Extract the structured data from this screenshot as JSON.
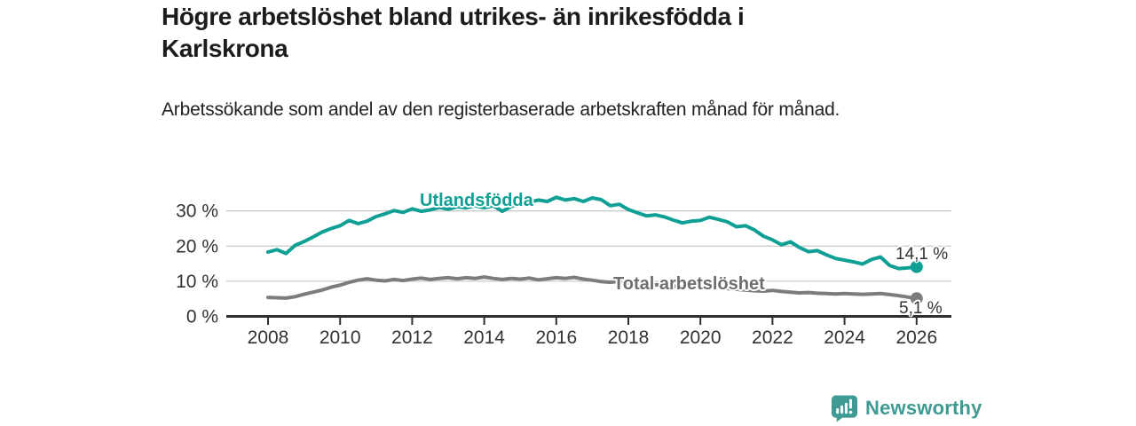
{
  "header": {
    "title": "Högre arbetslöshet bland utrikes- än inrikesfödda i Karlskrona",
    "subtitle": "Arbetssökande som andel av den registerbaserade arbetskraften månad för månad."
  },
  "chart_data": {
    "type": "line",
    "title": "Högre arbetslöshet bland utrikes- än inrikesfödda i Karlskrona",
    "subtitle": "Arbetssökande som andel av den registerbaserade arbetskraften månad för månad.",
    "x_unit": "year (monthly share of registered labour force)",
    "x_start": 2008,
    "x_step": 0.25,
    "xlim": [
      2006.7,
      2027.1
    ],
    "ylim": [
      0,
      36.5
    ],
    "x_ticks": [
      2008,
      2010,
      2012,
      2014,
      2016,
      2018,
      2020,
      2022,
      2024,
      2026
    ],
    "y_ticks": [
      0,
      10,
      20,
      30
    ],
    "y_tick_labels": [
      "0 %",
      "10 %",
      "20 %",
      "30 %"
    ],
    "grid": "horizontal",
    "legend": "inline-labels",
    "series": [
      {
        "name": "Utlandsfödda",
        "color": "#0f9f94",
        "label_color": "#0f9f94",
        "end_label": "14,1 %",
        "end_value": 14.1,
        "values": [
          18.3,
          19.0,
          17.9,
          20.2,
          21.3,
          22.6,
          24.0,
          25.0,
          25.8,
          27.3,
          26.4,
          27.1,
          28.4,
          29.2,
          30.1,
          29.6,
          30.6,
          29.9,
          30.3,
          31.0,
          30.5,
          31.2,
          30.9,
          31.5,
          30.9,
          31.5,
          29.9,
          31.3,
          31.9,
          32.5,
          33.1,
          32.7,
          33.9,
          33.1,
          33.5,
          32.7,
          33.7,
          33.2,
          31.5,
          31.9,
          30.4,
          29.5,
          28.6,
          28.9,
          28.3,
          27.4,
          26.6,
          27.1,
          27.3,
          28.2,
          27.6,
          26.9,
          25.5,
          25.8,
          24.6,
          22.8,
          21.8,
          20.4,
          21.2,
          19.6,
          18.4,
          18.7,
          17.5,
          16.5,
          16.0,
          15.5,
          14.9,
          16.2,
          16.9,
          14.5,
          13.6,
          13.8,
          14.1
        ]
      },
      {
        "name": "Total arbetslöshet",
        "color": "#7c7c7c",
        "label_color": "#6e6e6e",
        "end_label": "5,1 %",
        "end_value": 5.1,
        "values": [
          5.4,
          5.3,
          5.2,
          5.6,
          6.3,
          6.9,
          7.5,
          8.3,
          8.9,
          9.7,
          10.3,
          10.7,
          10.3,
          10.1,
          10.5,
          10.2,
          10.6,
          10.9,
          10.5,
          10.8,
          11.0,
          10.7,
          11.0,
          10.8,
          11.2,
          10.8,
          10.5,
          10.8,
          10.6,
          10.9,
          10.4,
          10.7,
          11.0,
          10.8,
          11.1,
          10.6,
          10.3,
          9.9,
          9.7,
          10.0,
          9.6,
          9.4,
          9.2,
          9.0,
          8.8,
          8.6,
          8.4,
          8.2,
          8.3,
          8.5,
          8.2,
          7.9,
          7.7,
          7.5,
          7.3,
          7.2,
          7.4,
          7.1,
          6.9,
          6.7,
          6.8,
          6.6,
          6.5,
          6.4,
          6.5,
          6.4,
          6.3,
          6.4,
          6.5,
          6.2,
          5.9,
          5.5,
          5.1
        ]
      }
    ]
  },
  "footer": {
    "brand": "Newsworthy",
    "brand_color": "#3f9a93"
  },
  "colors": {
    "background": "#ffffff",
    "grid": "#cbcbcb",
    "axis": "#2f2f2f",
    "tick_text": "#333333",
    "title_text": "#1c1c1c",
    "body_text": "#222222",
    "value_label_text": "#333333"
  }
}
